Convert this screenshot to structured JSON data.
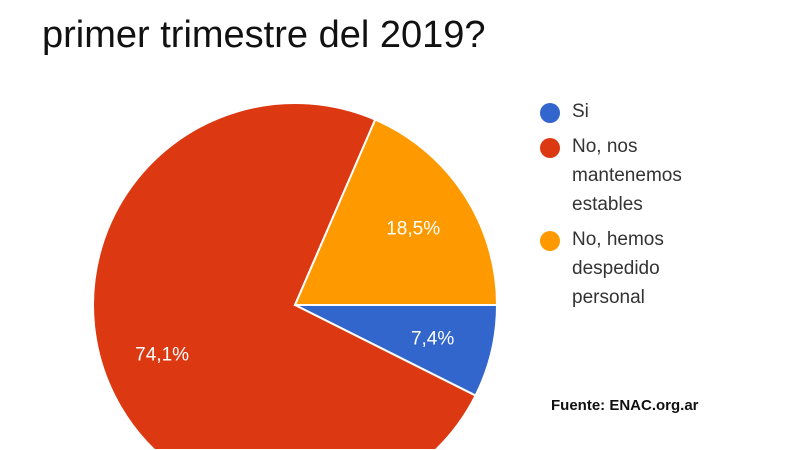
{
  "chart_data": {
    "type": "pie",
    "title": "primer trimestre del 2019?",
    "slices": [
      {
        "label": "Si",
        "value": 7.4,
        "display": "7,4%",
        "color": "#3366cc"
      },
      {
        "label": "No, nos mantenemos estables",
        "value": 74.1,
        "display": "74,1%",
        "color": "#dc3912"
      },
      {
        "label": "No, hemos despedido personal",
        "value": 18.5,
        "display": "18,5%",
        "color": "#ff9900"
      }
    ],
    "legend_position": "right"
  },
  "source": "Fuente: ENAC.org.ar"
}
